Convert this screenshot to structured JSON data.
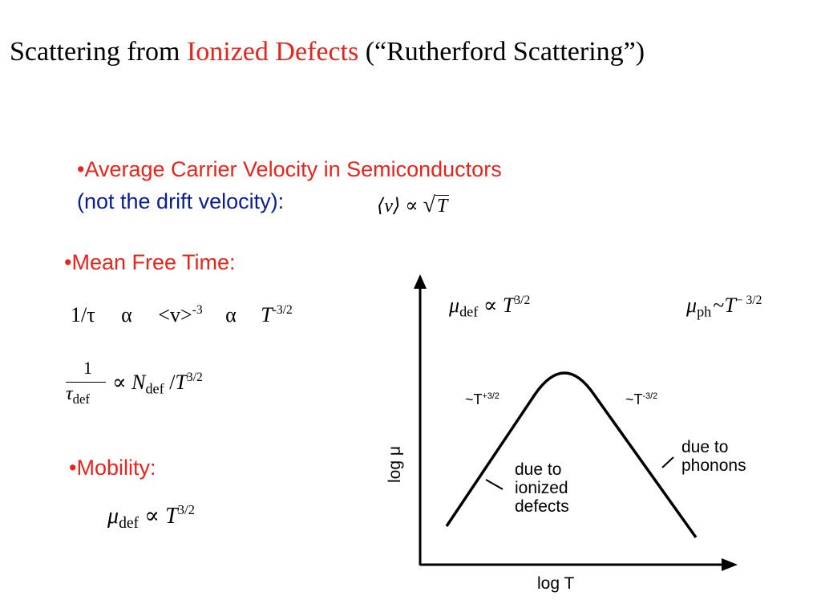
{
  "title": {
    "part1": "Scattering from ",
    "part2": "Ionized Defects",
    "part3": " (“Rutherford Scattering”)"
  },
  "bullets": {
    "velocity_line1": "•Average Carrier Velocity in Semiconductors",
    "velocity_line2": "(not the drift velocity):",
    "mean_free_time": "•Mean Free Time:",
    "mobility": "•Mobility:"
  },
  "equations": {
    "velocity": {
      "lhs": "⟨v⟩",
      "prop": "∝",
      "root": "√",
      "var": "T"
    },
    "mft": {
      "lhs": "1/τ",
      "alpha1": "α",
      "v": "<v>",
      "v_exp": "-3",
      "alpha2": "α",
      "T": "T",
      "T_exp": "-3/2"
    },
    "scatter_rate": {
      "num": "1",
      "den": "τ",
      "den_sub": "def",
      "prop": "∝",
      "N": "N",
      "N_sub": "def",
      "slash": " /",
      "T": "T",
      "T_exp": "3/2"
    },
    "mobility": {
      "mu": "μ",
      "sub": "def",
      "prop": "∝",
      "T": "T",
      "exp": "3/2"
    }
  },
  "graph": {
    "xlabel": "log T",
    "ylabel": "log μ",
    "label_def": {
      "mu": "μ",
      "sub": "def",
      "prop": "∝",
      "T": "T",
      "exp": "3/2"
    },
    "label_ph": {
      "mu": "μ",
      "sub": "ph",
      "prop": "~",
      "T": "T",
      "exp": "− 3/2"
    },
    "slope_left": {
      "base": "~T",
      "exp": "+3/2"
    },
    "slope_right": {
      "base": "~T",
      "exp": "-3/2"
    },
    "annot_def": [
      "due to",
      "ionized",
      "defects"
    ],
    "annot_ph": [
      "due to",
      "phonons"
    ]
  }
}
